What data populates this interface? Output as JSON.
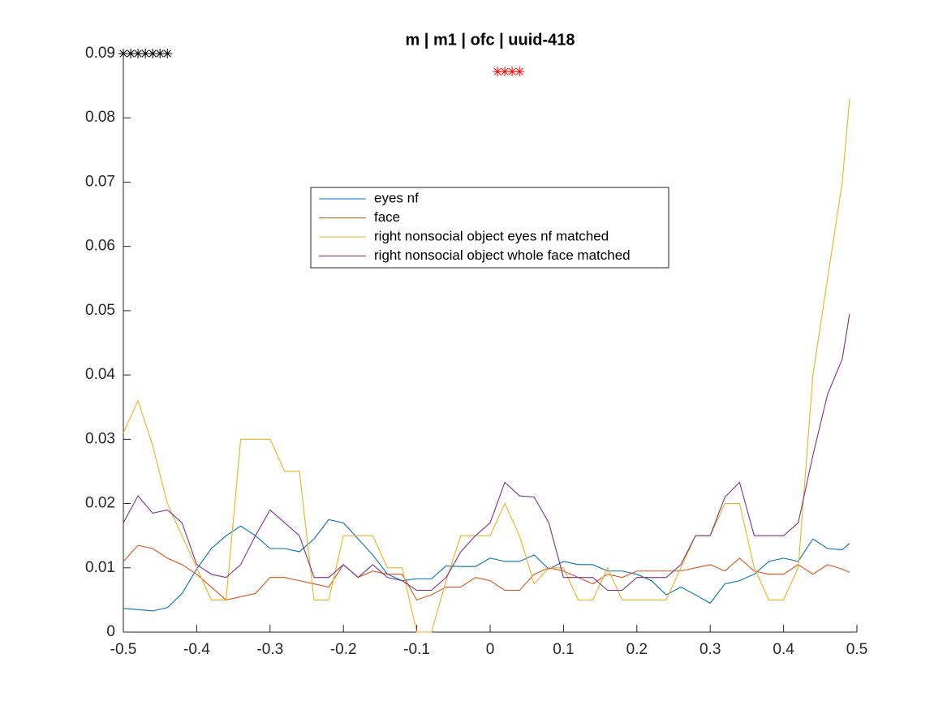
{
  "chart_data": {
    "type": "line",
    "title": "m | m1 | ofc | uuid-418",
    "x": [
      -0.5,
      -0.48,
      -0.46,
      -0.44,
      -0.42,
      -0.4,
      -0.38,
      -0.36,
      -0.34,
      -0.32,
      -0.3,
      -0.28,
      -0.26,
      -0.24,
      -0.22,
      -0.2,
      -0.18,
      -0.16,
      -0.14,
      -0.12,
      -0.1,
      -0.08,
      -0.06,
      -0.04,
      -0.02,
      0,
      0.02,
      0.04,
      0.06,
      0.08,
      0.1,
      0.12,
      0.14,
      0.16,
      0.18,
      0.2,
      0.22,
      0.24,
      0.26,
      0.28,
      0.3,
      0.32,
      0.34,
      0.36,
      0.38,
      0.4,
      0.42,
      0.44,
      0.46,
      0.48,
      0.49
    ],
    "series": [
      {
        "name": "eyes nf",
        "color": "#0072bd",
        "values": [
          0.0037,
          0.0035,
          0.0033,
          0.0038,
          0.006,
          0.0098,
          0.013,
          0.015,
          0.0165,
          0.015,
          0.013,
          0.013,
          0.0125,
          0.0145,
          0.0175,
          0.017,
          0.0145,
          0.012,
          0.009,
          0.008,
          0.0083,
          0.0083,
          0.0103,
          0.0102,
          0.0102,
          0.0115,
          0.011,
          0.011,
          0.012,
          0.0098,
          0.011,
          0.0105,
          0.0105,
          0.0095,
          0.0095,
          0.009,
          0.008,
          0.0058,
          0.007,
          0.0058,
          0.0045,
          0.0075,
          0.008,
          0.009,
          0.011,
          0.0115,
          0.011,
          0.0145,
          0.013,
          0.0128,
          0.0138
        ]
      },
      {
        "name": "face",
        "color": "#d95319",
        "values": [
          0.011,
          0.0135,
          0.013,
          0.0115,
          0.0105,
          0.009,
          0.007,
          0.005,
          0.0055,
          0.006,
          0.0085,
          0.0085,
          0.008,
          0.0075,
          0.007,
          0.0105,
          0.0085,
          0.0095,
          0.009,
          0.009,
          0.005,
          0.0058,
          0.007,
          0.007,
          0.0085,
          0.008,
          0.0065,
          0.0065,
          0.009,
          0.01,
          0.0095,
          0.0085,
          0.0075,
          0.009,
          0.0085,
          0.0095,
          0.0095,
          0.0095,
          0.0095,
          0.01,
          0.0105,
          0.0095,
          0.0115,
          0.0095,
          0.009,
          0.009,
          0.0105,
          0.009,
          0.0105,
          0.0098,
          0.0093
        ]
      },
      {
        "name": "right nonsocial object eyes nf matched",
        "color": "#edb120",
        "values": [
          0.031,
          0.036,
          0.029,
          0.02,
          0.015,
          0.01,
          0.005,
          0.005,
          0.03,
          0.03,
          0.03,
          0.025,
          0.025,
          0.005,
          0.005,
          0.015,
          0.015,
          0.015,
          0.01,
          0.01,
          0,
          0,
          0.008,
          0.015,
          0.015,
          0.015,
          0.02,
          0.015,
          0.0075,
          0.01,
          0.01,
          0.005,
          0.005,
          0.01,
          0.005,
          0.005,
          0.005,
          0.005,
          0.01,
          0.015,
          0.015,
          0.02,
          0.02,
          0.01,
          0.005,
          0.005,
          0.01,
          0.04,
          0.055,
          0.07,
          0.083
        ]
      },
      {
        "name": "right nonsocial object whole face matched",
        "color": "#7e2f8e",
        "values": [
          0.017,
          0.0212,
          0.0185,
          0.019,
          0.017,
          0.0105,
          0.009,
          0.0085,
          0.0105,
          0.015,
          0.019,
          0.017,
          0.015,
          0.0085,
          0.0085,
          0.0105,
          0.0085,
          0.0105,
          0.0085,
          0.008,
          0.0065,
          0.0065,
          0.0085,
          0.0125,
          0.015,
          0.017,
          0.0233,
          0.0212,
          0.021,
          0.017,
          0.0085,
          0.0085,
          0.0085,
          0.0065,
          0.0065,
          0.0085,
          0.0085,
          0.0085,
          0.0105,
          0.015,
          0.015,
          0.021,
          0.0233,
          0.015,
          0.015,
          0.015,
          0.017,
          0.0275,
          0.037,
          0.0425,
          0.0495
        ]
      }
    ],
    "significance": [
      {
        "color": "#000000",
        "y": 0.09,
        "x": [
          -0.5,
          -0.49,
          -0.48,
          -0.47,
          -0.46,
          -0.45,
          -0.44
        ]
      },
      {
        "color": "#ff0000",
        "y": 0.0872,
        "x": [
          0.01,
          0.02,
          0.03,
          0.04
        ]
      }
    ],
    "xlim": [
      -0.5,
      0.5
    ],
    "xticks": [
      -0.5,
      -0.4,
      -0.3,
      -0.2,
      -0.1,
      0,
      0.1,
      0.2,
      0.3,
      0.4,
      0.5
    ],
    "ylim": [
      0,
      0.09
    ],
    "yticks": [
      0,
      0.01,
      0.02,
      0.03,
      0.04,
      0.05,
      0.06,
      0.07,
      0.08,
      0.09
    ],
    "grid": false
  }
}
